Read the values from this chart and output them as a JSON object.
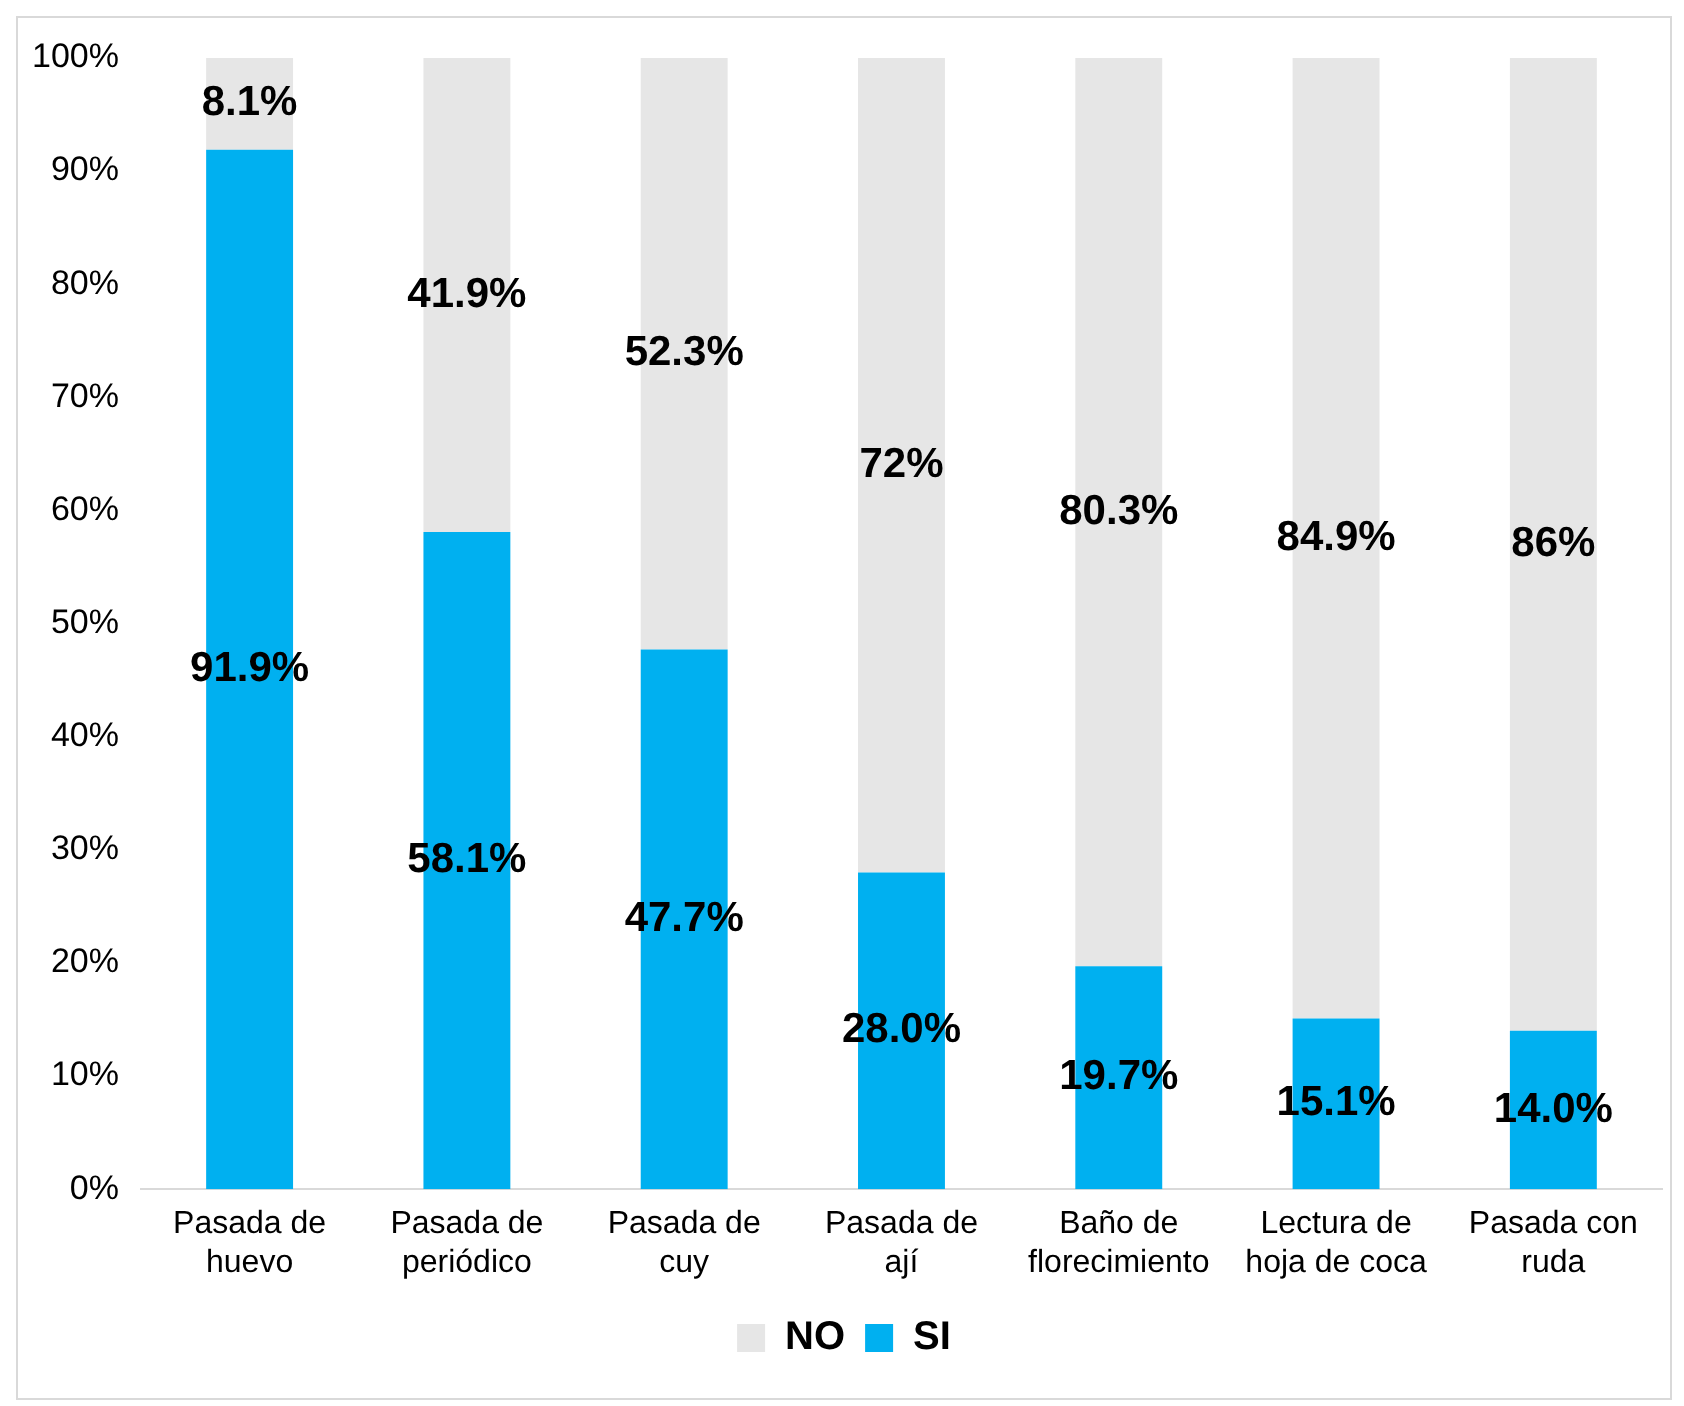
{
  "chart_data": {
    "type": "bar",
    "stacked": true,
    "categories": [
      "Pasada de huevo",
      "Pasada de periódico",
      "Pasada de cuy",
      "Pasada de ají",
      "Baño de florecimiento",
      "Lectura de hoja de coca",
      "Pasada con ruda"
    ],
    "series": [
      {
        "name": "SI",
        "color": "#00b0f0",
        "values": [
          91.9,
          58.1,
          47.7,
          28.0,
          19.7,
          15.1,
          14.0
        ],
        "value_labels": [
          "91.9%",
          "58.1%",
          "47.7%",
          "28.0%",
          "19.7%",
          "15.1%",
          "14.0%"
        ]
      },
      {
        "name": "NO",
        "color": "#e6e6e6",
        "values": [
          8.1,
          41.9,
          52.3,
          72,
          80.3,
          84.9,
          86
        ],
        "value_labels": [
          "8.1%",
          "41.9%",
          "52.3%",
          "72%",
          "80.3%",
          "84.9%",
          "86%"
        ]
      }
    ],
    "ylim": [
      0,
      100
    ],
    "yticks": [
      {
        "value": 0,
        "label": "0%"
      },
      {
        "value": 10,
        "label": "10%"
      },
      {
        "value": 20,
        "label": "20%"
      },
      {
        "value": 30,
        "label": "30%"
      },
      {
        "value": 40,
        "label": "40%"
      },
      {
        "value": 50,
        "label": "50%"
      },
      {
        "value": 60,
        "label": "60%"
      },
      {
        "value": 70,
        "label": "70%"
      },
      {
        "value": 80,
        "label": "80%"
      },
      {
        "value": 90,
        "label": "90%"
      },
      {
        "value": 100,
        "label": "100%"
      }
    ],
    "grid": false,
    "legend": "bottom"
  }
}
